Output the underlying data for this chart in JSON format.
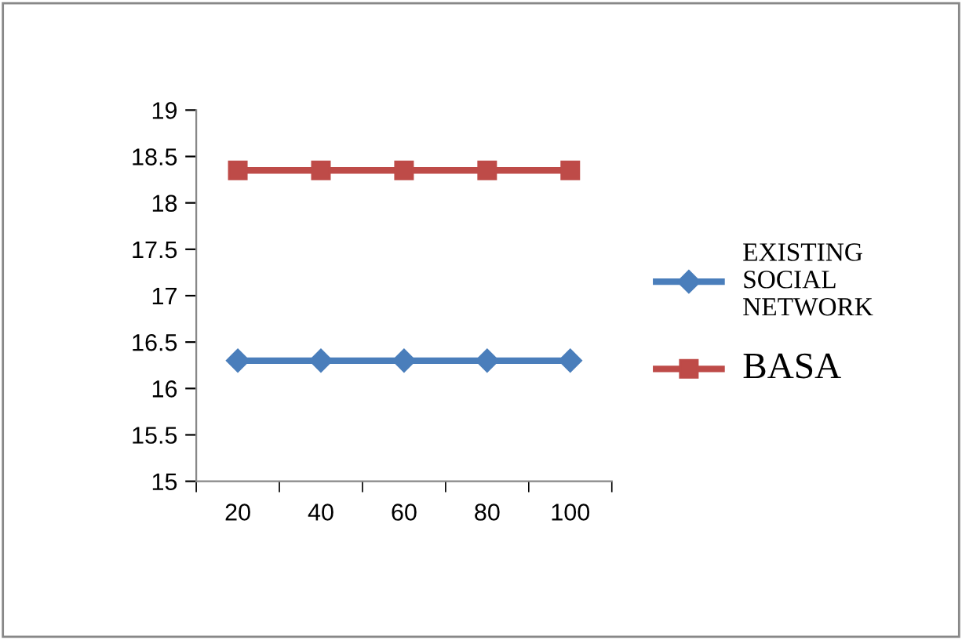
{
  "chart_data": {
    "type": "line",
    "categories": [
      "20",
      "40",
      "60",
      "80",
      "100"
    ],
    "series": [
      {
        "name": "EXISTING SOCIAL NETWORK",
        "color": "#4a7ebb",
        "marker": "diamond",
        "values": [
          16.3,
          16.3,
          16.3,
          16.3,
          16.3
        ]
      },
      {
        "name": "BASA",
        "color": "#be4b48",
        "marker": "square",
        "values": [
          18.35,
          18.35,
          18.35,
          18.35,
          18.35
        ]
      }
    ],
    "ylim": [
      15,
      19
    ],
    "yticks": [
      15,
      15.5,
      16,
      16.5,
      17,
      17.5,
      18,
      18.5,
      19
    ],
    "grid": false,
    "legend": "right",
    "line_style": "solid"
  }
}
